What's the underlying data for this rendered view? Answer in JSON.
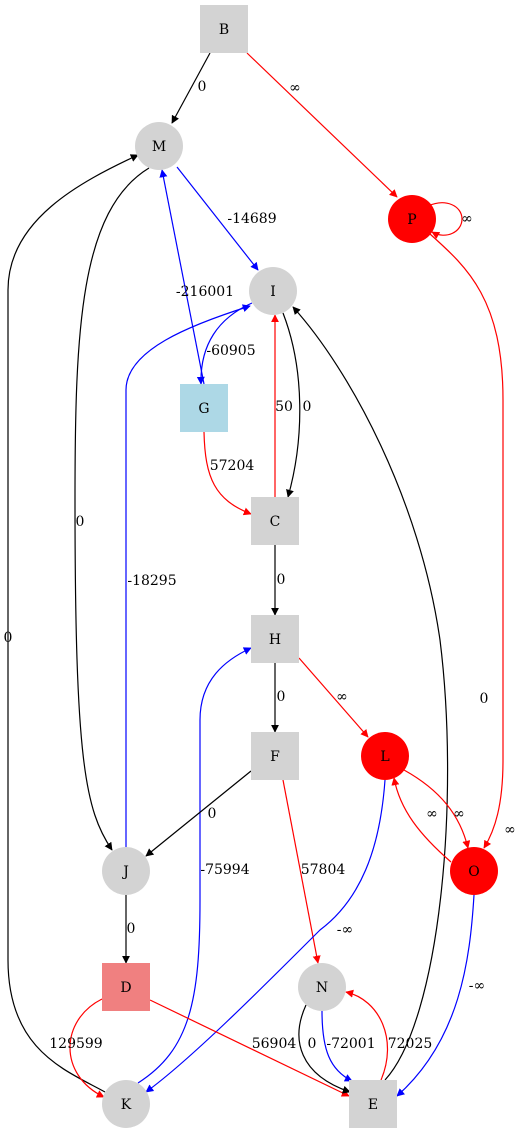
{
  "colors": {
    "gray": "#d3d3d3",
    "lightblue": "#add8e6",
    "lightcoral": "#f08080",
    "red": "#ff0000",
    "black": "#000000",
    "blue": "#0000ff"
  },
  "nodes": {
    "B": {
      "label": "B",
      "shape": "box",
      "fill": "gray"
    },
    "M": {
      "label": "M",
      "shape": "circle",
      "fill": "gray"
    },
    "P": {
      "label": "P",
      "shape": "circle",
      "fill": "red"
    },
    "I": {
      "label": "I",
      "shape": "circle",
      "fill": "gray"
    },
    "G": {
      "label": "G",
      "shape": "box",
      "fill": "lightblue"
    },
    "C": {
      "label": "C",
      "shape": "box",
      "fill": "gray"
    },
    "H": {
      "label": "H",
      "shape": "box",
      "fill": "gray"
    },
    "F": {
      "label": "F",
      "shape": "box",
      "fill": "gray"
    },
    "L": {
      "label": "L",
      "shape": "circle",
      "fill": "red"
    },
    "O": {
      "label": "O",
      "shape": "circle",
      "fill": "red"
    },
    "J": {
      "label": "J",
      "shape": "circle",
      "fill": "gray"
    },
    "D": {
      "label": "D",
      "shape": "box",
      "fill": "lightcoral"
    },
    "N": {
      "label": "N",
      "shape": "circle",
      "fill": "gray"
    },
    "K": {
      "label": "K",
      "shape": "circle",
      "fill": "gray"
    },
    "E": {
      "label": "E",
      "shape": "box",
      "fill": "gray"
    }
  },
  "edges": [
    {
      "id": "B-M",
      "label": "0",
      "color": "black"
    },
    {
      "id": "B-P",
      "label": "∞",
      "color": "red"
    },
    {
      "id": "P-P",
      "label": "∞",
      "color": "red"
    },
    {
      "id": "M-I",
      "label": "-14689",
      "color": "blue"
    },
    {
      "id": "G-M",
      "label": "-216001",
      "color": "blue"
    },
    {
      "id": "M-J",
      "label": "0",
      "color": "black"
    },
    {
      "id": "K-M",
      "label": "0",
      "color": "black"
    },
    {
      "id": "I-G",
      "label": "-60905",
      "color": "blue"
    },
    {
      "id": "C-I",
      "label": "50",
      "color": "red"
    },
    {
      "id": "I-C",
      "label": "0",
      "color": "black"
    },
    {
      "id": "J-I",
      "label": "-18295",
      "color": "blue"
    },
    {
      "id": "E-I",
      "label": "0",
      "color": "black"
    },
    {
      "id": "G-C",
      "label": "57204",
      "color": "red"
    },
    {
      "id": "P-O",
      "label": "∞",
      "color": "red"
    },
    {
      "id": "C-H",
      "label": "0",
      "color": "black"
    },
    {
      "id": "H-F",
      "label": "0",
      "color": "black"
    },
    {
      "id": "H-L",
      "label": "∞",
      "color": "red"
    },
    {
      "id": "K-H",
      "label": "-75994",
      "color": "blue"
    },
    {
      "id": "F-J",
      "label": "0",
      "color": "black"
    },
    {
      "id": "F-N",
      "label": "57804",
      "color": "red"
    },
    {
      "id": "L-O",
      "label": "∞",
      "color": "red"
    },
    {
      "id": "O-L",
      "label": "∞",
      "color": "red"
    },
    {
      "id": "L-K",
      "label": "-∞",
      "color": "blue"
    },
    {
      "id": "O-E",
      "label": "-∞",
      "color": "blue"
    },
    {
      "id": "J-D",
      "label": "0",
      "color": "black"
    },
    {
      "id": "D-K",
      "label": "129599",
      "color": "red"
    },
    {
      "id": "D-E",
      "label": "56904",
      "color": "red"
    },
    {
      "id": "N-E-black",
      "label": "0",
      "color": "black"
    },
    {
      "id": "N-E-blue",
      "label": "-72001",
      "color": "blue"
    },
    {
      "id": "E-N",
      "label": "72025",
      "color": "red"
    }
  ]
}
